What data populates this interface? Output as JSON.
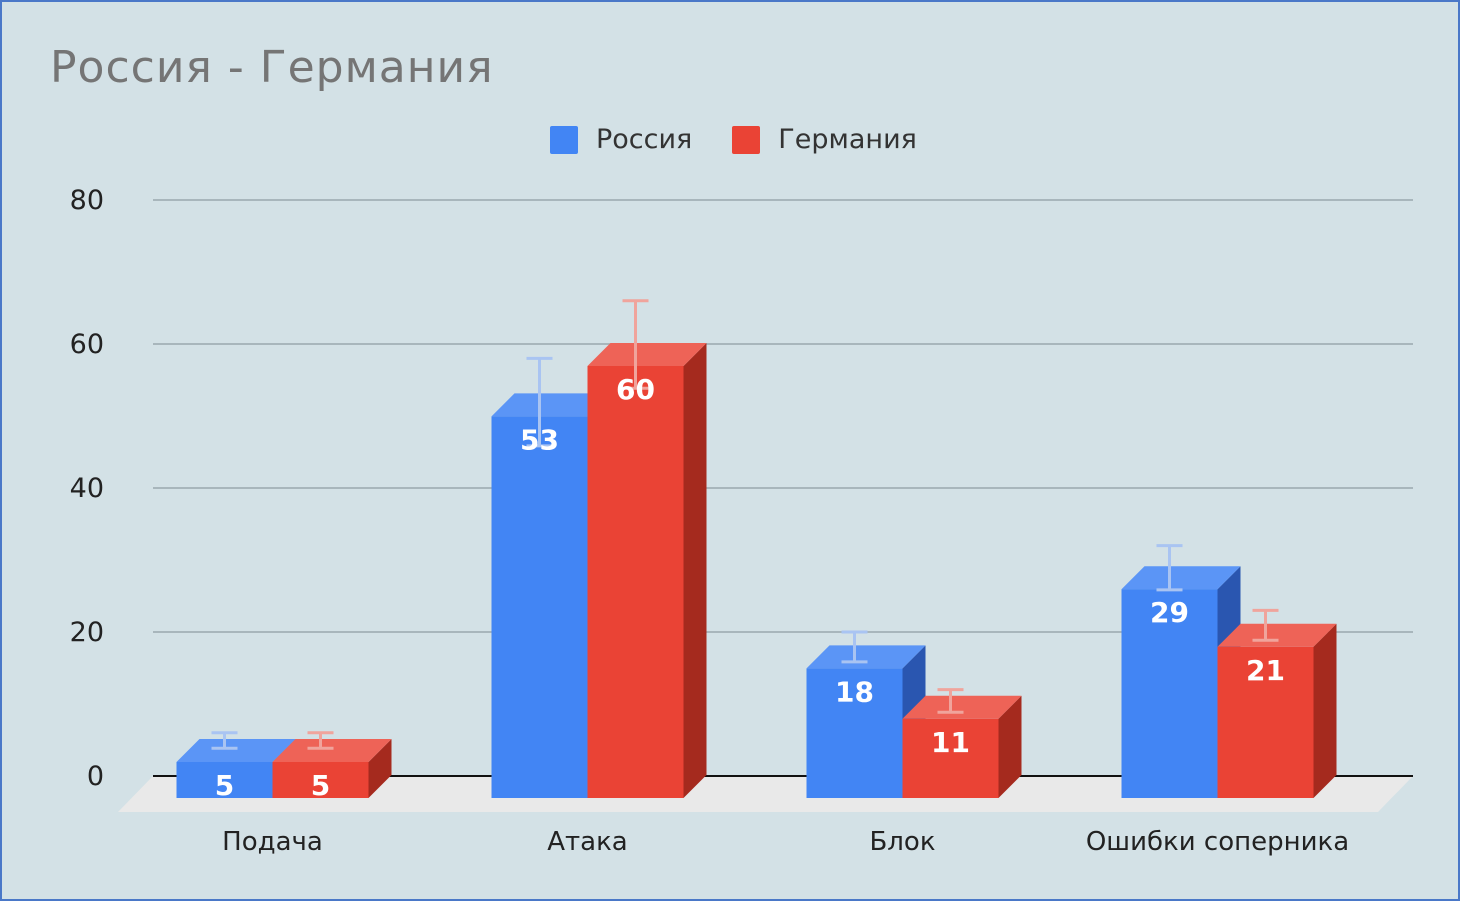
{
  "chart_data": {
    "type": "bar",
    "title": "Россия - Германия",
    "categories": [
      "Подача",
      "Атака",
      "Блок",
      "Ошибки соперника"
    ],
    "series": [
      {
        "name": "Россия",
        "values": [
          5,
          53,
          18,
          29
        ],
        "data_labels": [
          "5",
          "53",
          "18",
          "29"
        ],
        "error_bars": [
          [
            4,
            6
          ],
          [
            46,
            58
          ],
          [
            16,
            20
          ],
          [
            26,
            32
          ]
        ],
        "color": "#4285f4",
        "side_color": "#2a56b0",
        "top_color": "#5b95f6"
      },
      {
        "name": "Германия",
        "values": [
          5,
          60,
          11,
          21
        ],
        "data_labels": [
          "5",
          "60",
          "11",
          "21"
        ],
        "error_bars": [
          [
            4,
            6
          ],
          [
            54,
            66
          ],
          [
            9,
            12
          ],
          [
            19,
            23
          ]
        ],
        "color": "#ea4335",
        "side_color": "#a52a1e",
        "top_color": "#ee6357"
      }
    ],
    "yticks": [
      "0",
      "20",
      "40",
      "60",
      "80"
    ],
    "ylim": [
      0,
      80
    ],
    "legend_position": "top",
    "grid": true,
    "style": "3d"
  }
}
